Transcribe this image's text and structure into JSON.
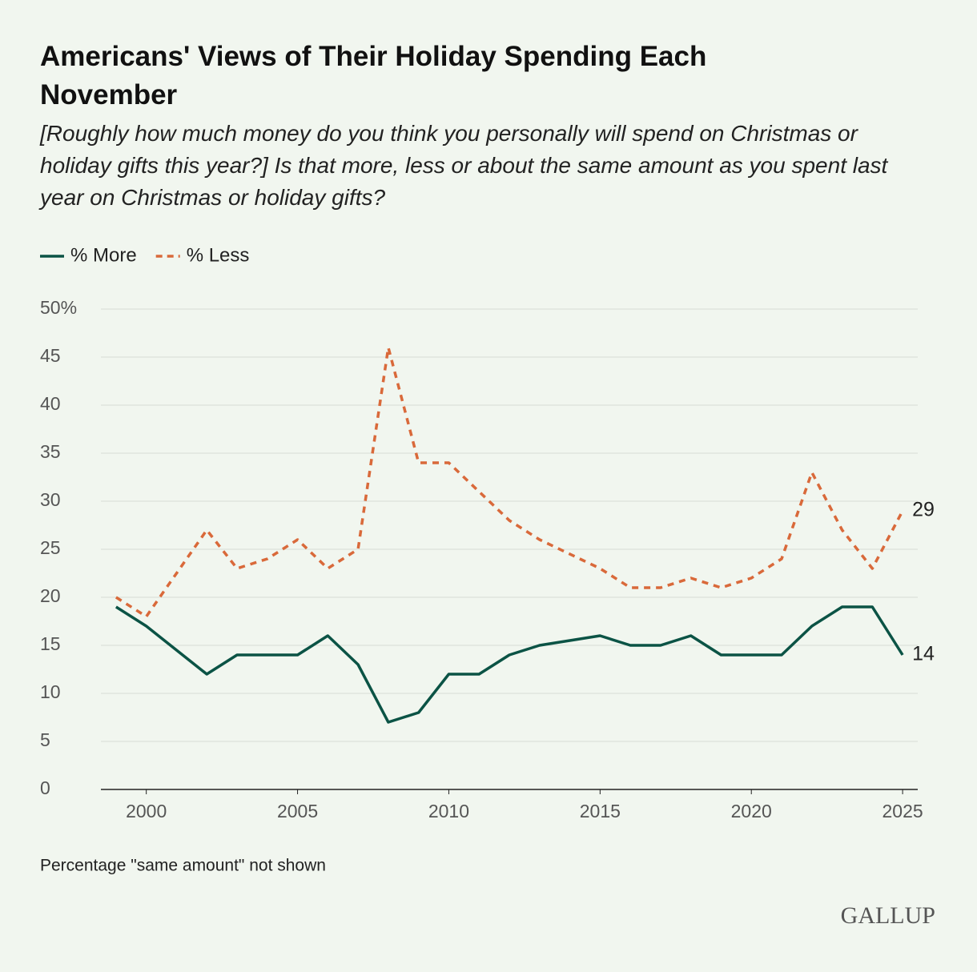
{
  "chart_data": {
    "type": "line",
    "title": "Americans' Views of Their Holiday Spending Each November",
    "subtitle": "[Roughly how much money do you think you personally will spend on Christmas or holiday gifts this year?] Is that more, less or about the same amount as you spent last year on Christmas or holiday gifts?",
    "x": [
      1999,
      2000,
      2002,
      2003,
      2004,
      2005,
      2006,
      2007,
      2008,
      2009,
      2010,
      2011,
      2012,
      2013,
      2015,
      2016,
      2017,
      2018,
      2019,
      2020,
      2021,
      2022,
      2023,
      2024,
      2025
    ],
    "series": [
      {
        "name": "% More",
        "color": "#0b5345",
        "dash": false,
        "values": [
          19,
          17,
          12,
          14,
          14,
          14,
          16,
          13,
          7,
          8,
          12,
          12,
          14,
          15,
          16,
          15,
          15,
          16,
          14,
          14,
          14,
          17,
          19,
          19,
          14
        ]
      },
      {
        "name": "% Less",
        "color": "#d9693a",
        "dash": true,
        "values": [
          20,
          18,
          27,
          23,
          24,
          26,
          23,
          25,
          46,
          34,
          34,
          31,
          28,
          26,
          23,
          21,
          21,
          22,
          21,
          22,
          24,
          33,
          27,
          23,
          29
        ]
      }
    ],
    "xlim": [
      1998.5,
      2025.5
    ],
    "xticks": [
      2000,
      2005,
      2010,
      2015,
      2020,
      2025
    ],
    "ylim": [
      0,
      50
    ],
    "yticks": [
      0,
      5,
      10,
      15,
      20,
      25,
      30,
      35,
      40,
      45,
      {
        "value": 50,
        "label": "50%"
      }
    ],
    "grid": true,
    "note": "Percentage \"same amount\" not shown",
    "source": "GALLUP"
  }
}
